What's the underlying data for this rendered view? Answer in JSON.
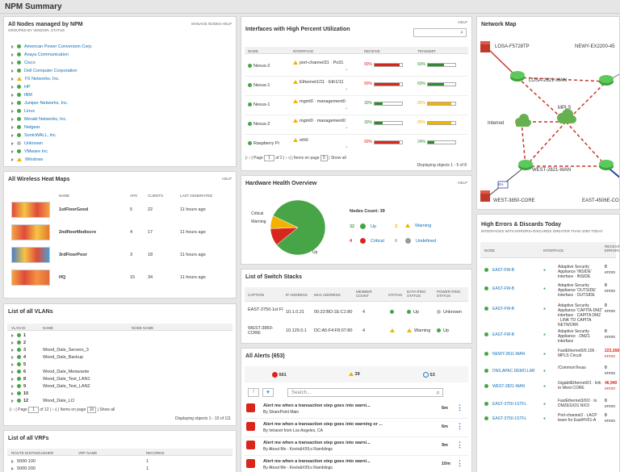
{
  "header": {
    "title": "NPM Summary"
  },
  "nodes_panel": {
    "title": "All Nodes managed by NPM",
    "subtitle": "Grouped by Vendor, Status",
    "links": "Manage Nodes  Help",
    "items": [
      {
        "label": "American Power Conversion Corp.",
        "status": "up"
      },
      {
        "label": "Avaya Communication",
        "status": "up"
      },
      {
        "label": "Cisco",
        "status": "up"
      },
      {
        "label": "Dell Computer Corporation",
        "status": "up"
      },
      {
        "label": "F5 Networks, Inc.",
        "status": "warning"
      },
      {
        "label": "HP",
        "status": "up"
      },
      {
        "label": "IBM",
        "status": "up"
      },
      {
        "label": "Juniper Networks, Inc.",
        "status": "up"
      },
      {
        "label": "Linux",
        "status": "up"
      },
      {
        "label": "Meraki Networks, Inc.",
        "status": "up"
      },
      {
        "label": "Netgear",
        "status": "up"
      },
      {
        "label": "SonicWALL, Inc.",
        "status": "up"
      },
      {
        "label": "Unknown",
        "status": "unknown"
      },
      {
        "label": "VMware Inc.",
        "status": "up"
      },
      {
        "label": "Windows",
        "status": "warning"
      }
    ]
  },
  "heatmaps": {
    "title": "All Wireless Heat Maps",
    "help": "Help",
    "headers": [
      "Name",
      "APs",
      "Clients",
      "Last Generated"
    ],
    "rows": [
      {
        "name": "1stFloorGood",
        "aps": "5",
        "clients": "22",
        "last": "11 hours ago"
      },
      {
        "name": "2ndfloorMediocre",
        "aps": "4",
        "clients": "17",
        "last": "11 hours ago"
      },
      {
        "name": "3rdFloorPoor",
        "aps": "3",
        "clients": "18",
        "last": "11 hours ago"
      },
      {
        "name": "HQ",
        "aps": "15",
        "clients": "34",
        "last": "11 hours ago"
      }
    ]
  },
  "vlans": {
    "title": "List of all VLANs",
    "headers": [
      "VLAN ID",
      "Name",
      "Node Name"
    ],
    "rows": [
      {
        "id": "1",
        "name": ""
      },
      {
        "id": "2",
        "name": ""
      },
      {
        "id": "3",
        "name": "Wood_Dale_Servers_3"
      },
      {
        "id": "4",
        "name": "Wood_Dale_Backup"
      },
      {
        "id": "5",
        "name": ""
      },
      {
        "id": "6",
        "name": "Wood_Dale_Metavante"
      },
      {
        "id": "8",
        "name": "Wood_Dale_Test_LAN1"
      },
      {
        "id": "9",
        "name": "Wood_Dale_Test_LAN2"
      },
      {
        "id": "10",
        "name": ""
      },
      {
        "id": "12",
        "name": "Wood_Dale_LO"
      }
    ],
    "pager": {
      "page_label": "Page",
      "page": "1",
      "of": "of 12",
      "items_label": "Items on page",
      "items": "10",
      "show_all": "Show all",
      "summary": "Displaying objects 1 - 10 of 111"
    }
  },
  "vrfs": {
    "title": "List of all VRFs",
    "headers": [
      "Route Distinguisher",
      "VRF Name",
      "Records"
    ],
    "rows": [
      {
        "rd": "5000:100",
        "records": "1"
      },
      {
        "rd": "5000:200",
        "records": "1"
      }
    ]
  },
  "interfaces": {
    "title": "Interfaces with High Percent Utilization",
    "help": "Help",
    "search_placeholder": "",
    "headers": [
      "Node",
      "Interface",
      "Receive",
      "Transmit"
    ],
    "rows": [
      {
        "node": "Nexus-2",
        "iface": "port-channel31 · Po31",
        "rx": "90%",
        "rx_v": 0.9,
        "rx_c": "#d9261c",
        "tx": "60%",
        "tx_v": 0.6,
        "tx_c": "#2e8b2e"
      },
      {
        "node": "Nexus-1",
        "iface": "Ethernet1/11 · Eth1/11",
        "rx": "90%",
        "rx_v": 0.9,
        "rx_c": "#d9261c",
        "tx": "60%",
        "tx_v": 0.6,
        "tx_c": "#2e8b2e"
      },
      {
        "node": "Nexus-1",
        "iface": "mgmt0 · management0",
        "rx": "30%",
        "rx_v": 0.3,
        "rx_c": "#2e8b2e",
        "tx": "85%",
        "tx_v": 0.85,
        "tx_c": "#f0b400"
      },
      {
        "node": "Nexus-2",
        "iface": "mgmt0 · management0",
        "rx": "30%",
        "rx_v": 0.3,
        "rx_c": "#2e8b2e",
        "tx": "85%",
        "tx_v": 0.85,
        "tx_c": "#f0b400"
      },
      {
        "node": "Raspberry Pi",
        "iface": "eth0",
        "rx": "90%",
        "rx_v": 0.9,
        "rx_c": "#d9261c",
        "tx": "24%",
        "tx_v": 0.24,
        "tx_c": "#2e8b2e"
      }
    ],
    "pager": {
      "page_label": "Page",
      "page": "1",
      "of": "of 2",
      "items_label": "Items on page",
      "items": "5",
      "show_all": "Show all",
      "summary": "Displaying objects 1 - 5 of 8"
    }
  },
  "hardware": {
    "title": "Hardware Health Overview",
    "help": "Help",
    "count_label": "Nodes Count: 39",
    "pie": {
      "up": 32,
      "warning": 3,
      "critical": 4
    },
    "pie_labels": {
      "critical": "Critical",
      "warning": "Warning",
      "up": "Up"
    },
    "legend": [
      {
        "num": "32",
        "label": "Up",
        "color": "#47a447"
      },
      {
        "num": "3",
        "label": "Warning",
        "color": "#f0b400"
      },
      {
        "num": "4",
        "label": "Critical",
        "color": "#d9261c"
      },
      {
        "num": "0",
        "label": "Undefined",
        "color": "#999999"
      }
    ]
  },
  "stacks": {
    "title": "List of Switch Stacks",
    "headers": [
      "Caption",
      "IP Address",
      "MAC Address",
      "Member Count",
      "Status",
      "Data Ring Status",
      "Power Ring Status"
    ],
    "rows": [
      {
        "caption": "EAST-3750-1st FI",
        "ip": "10.1.0.21",
        "mac": "00:22:BD:1E:C1:80",
        "count": "4",
        "data": "Up",
        "power": "Unknown"
      },
      {
        "caption": "WEST-3850-CORE",
        "ip": "10.129.0.1",
        "mac": "DC:A5:F4:F8:07:80",
        "count": "4",
        "data": "Warning",
        "power": "Up"
      }
    ]
  },
  "alerts": {
    "title": "All Alerts (653)",
    "counts": {
      "critical": "561",
      "warning": "39",
      "info": "53"
    },
    "search_placeholder": "Search...",
    "rows": [
      {
        "title": "Alert me when a transaction step goes into warni...",
        "by": "By SharePoint Main",
        "age": "6m"
      },
      {
        "title": "Alert me when a transaction step goes into warning or ...",
        "by": "By Intranet from Los Angeles, CA",
        "age": "6m"
      },
      {
        "title": "Alert me when a transaction step goes into warni...",
        "by": "By About Me - Kevin&#39;s Ramblings",
        "age": "9m"
      },
      {
        "title": "Alert me when a transaction step goes into warni...",
        "by": "By About Me - Kevin&#39;s Ramblings",
        "age": "10m"
      }
    ]
  },
  "netmap": {
    "title": "Network Map",
    "labels": {
      "losa_f5": "LOSA-F5728TP",
      "newy": "NEWY-EX2200-45",
      "losa_wan": "LOSA-2821-WAN",
      "mpls": "MPLS",
      "internet": "Internet",
      "west_wan": "WEST-2821-WAN",
      "west_core": "WEST-3850-CORE",
      "east_core": "EAST-4506E-CO",
      "pct": "6%"
    }
  },
  "errors": {
    "title": "High Errors & Discards Today",
    "subtitle": "Interfaces with Errors+Discards greater than 1000 today",
    "headers": [
      "Node",
      "Interface",
      "Receive Errors"
    ],
    "rows": [
      {
        "node": "EAST-FW-B",
        "iface": "Adaptive Security Appliance 'INSIDE' interface · INSIDE",
        "val": "0",
        "unit": "errors",
        "color": "#333"
      },
      {
        "node": "EAST-FW-B",
        "iface": "Adaptive Security Appliance 'OUTSIDE' interface · OUTSIDE",
        "val": "0",
        "unit": "errors",
        "color": "#333"
      },
      {
        "node": "EAST-FW-B",
        "iface": "Adaptive Security Appliance 'CAPITA-DMZ' interface · CAPITA DMZ · LINK TO CAPITA NETWORK",
        "val": "0",
        "unit": "errors",
        "color": "#333"
      },
      {
        "node": "EAST-FW-B",
        "iface": "Adaptive Security Appliance · DMZ1 interface",
        "val": "0",
        "unit": "errors",
        "color": "#333"
      },
      {
        "node": "NEWY-2811-WAN",
        "iface": "FastEthernet0/0.106 · MPLS Circuit",
        "val": "223,268",
        "unit": "errors",
        "color": "#d9261c"
      },
      {
        "node": "DNS.APAC.DEMO.LAB",
        "iface": "/CommonTexas",
        "val": "0",
        "unit": "errors",
        "color": "#333"
      },
      {
        "node": "WEST-2821-WAN",
        "iface": "GigabitEthernet0/1 · link to West CORE",
        "val": "46,940",
        "unit": "errors",
        "color": "#d9261c"
      },
      {
        "node": "EAST-3750-1STFL",
        "iface": "FastEthernet3/0/2 · to DMZESX01 NIC0",
        "val": "0",
        "unit": "errors",
        "color": "#333"
      },
      {
        "node": "EAST-3750-1STFL",
        "iface": "Port-channel3 · LACP team for EastHV01-A",
        "val": "0",
        "unit": "errors",
        "color": "#333"
      }
    ]
  }
}
